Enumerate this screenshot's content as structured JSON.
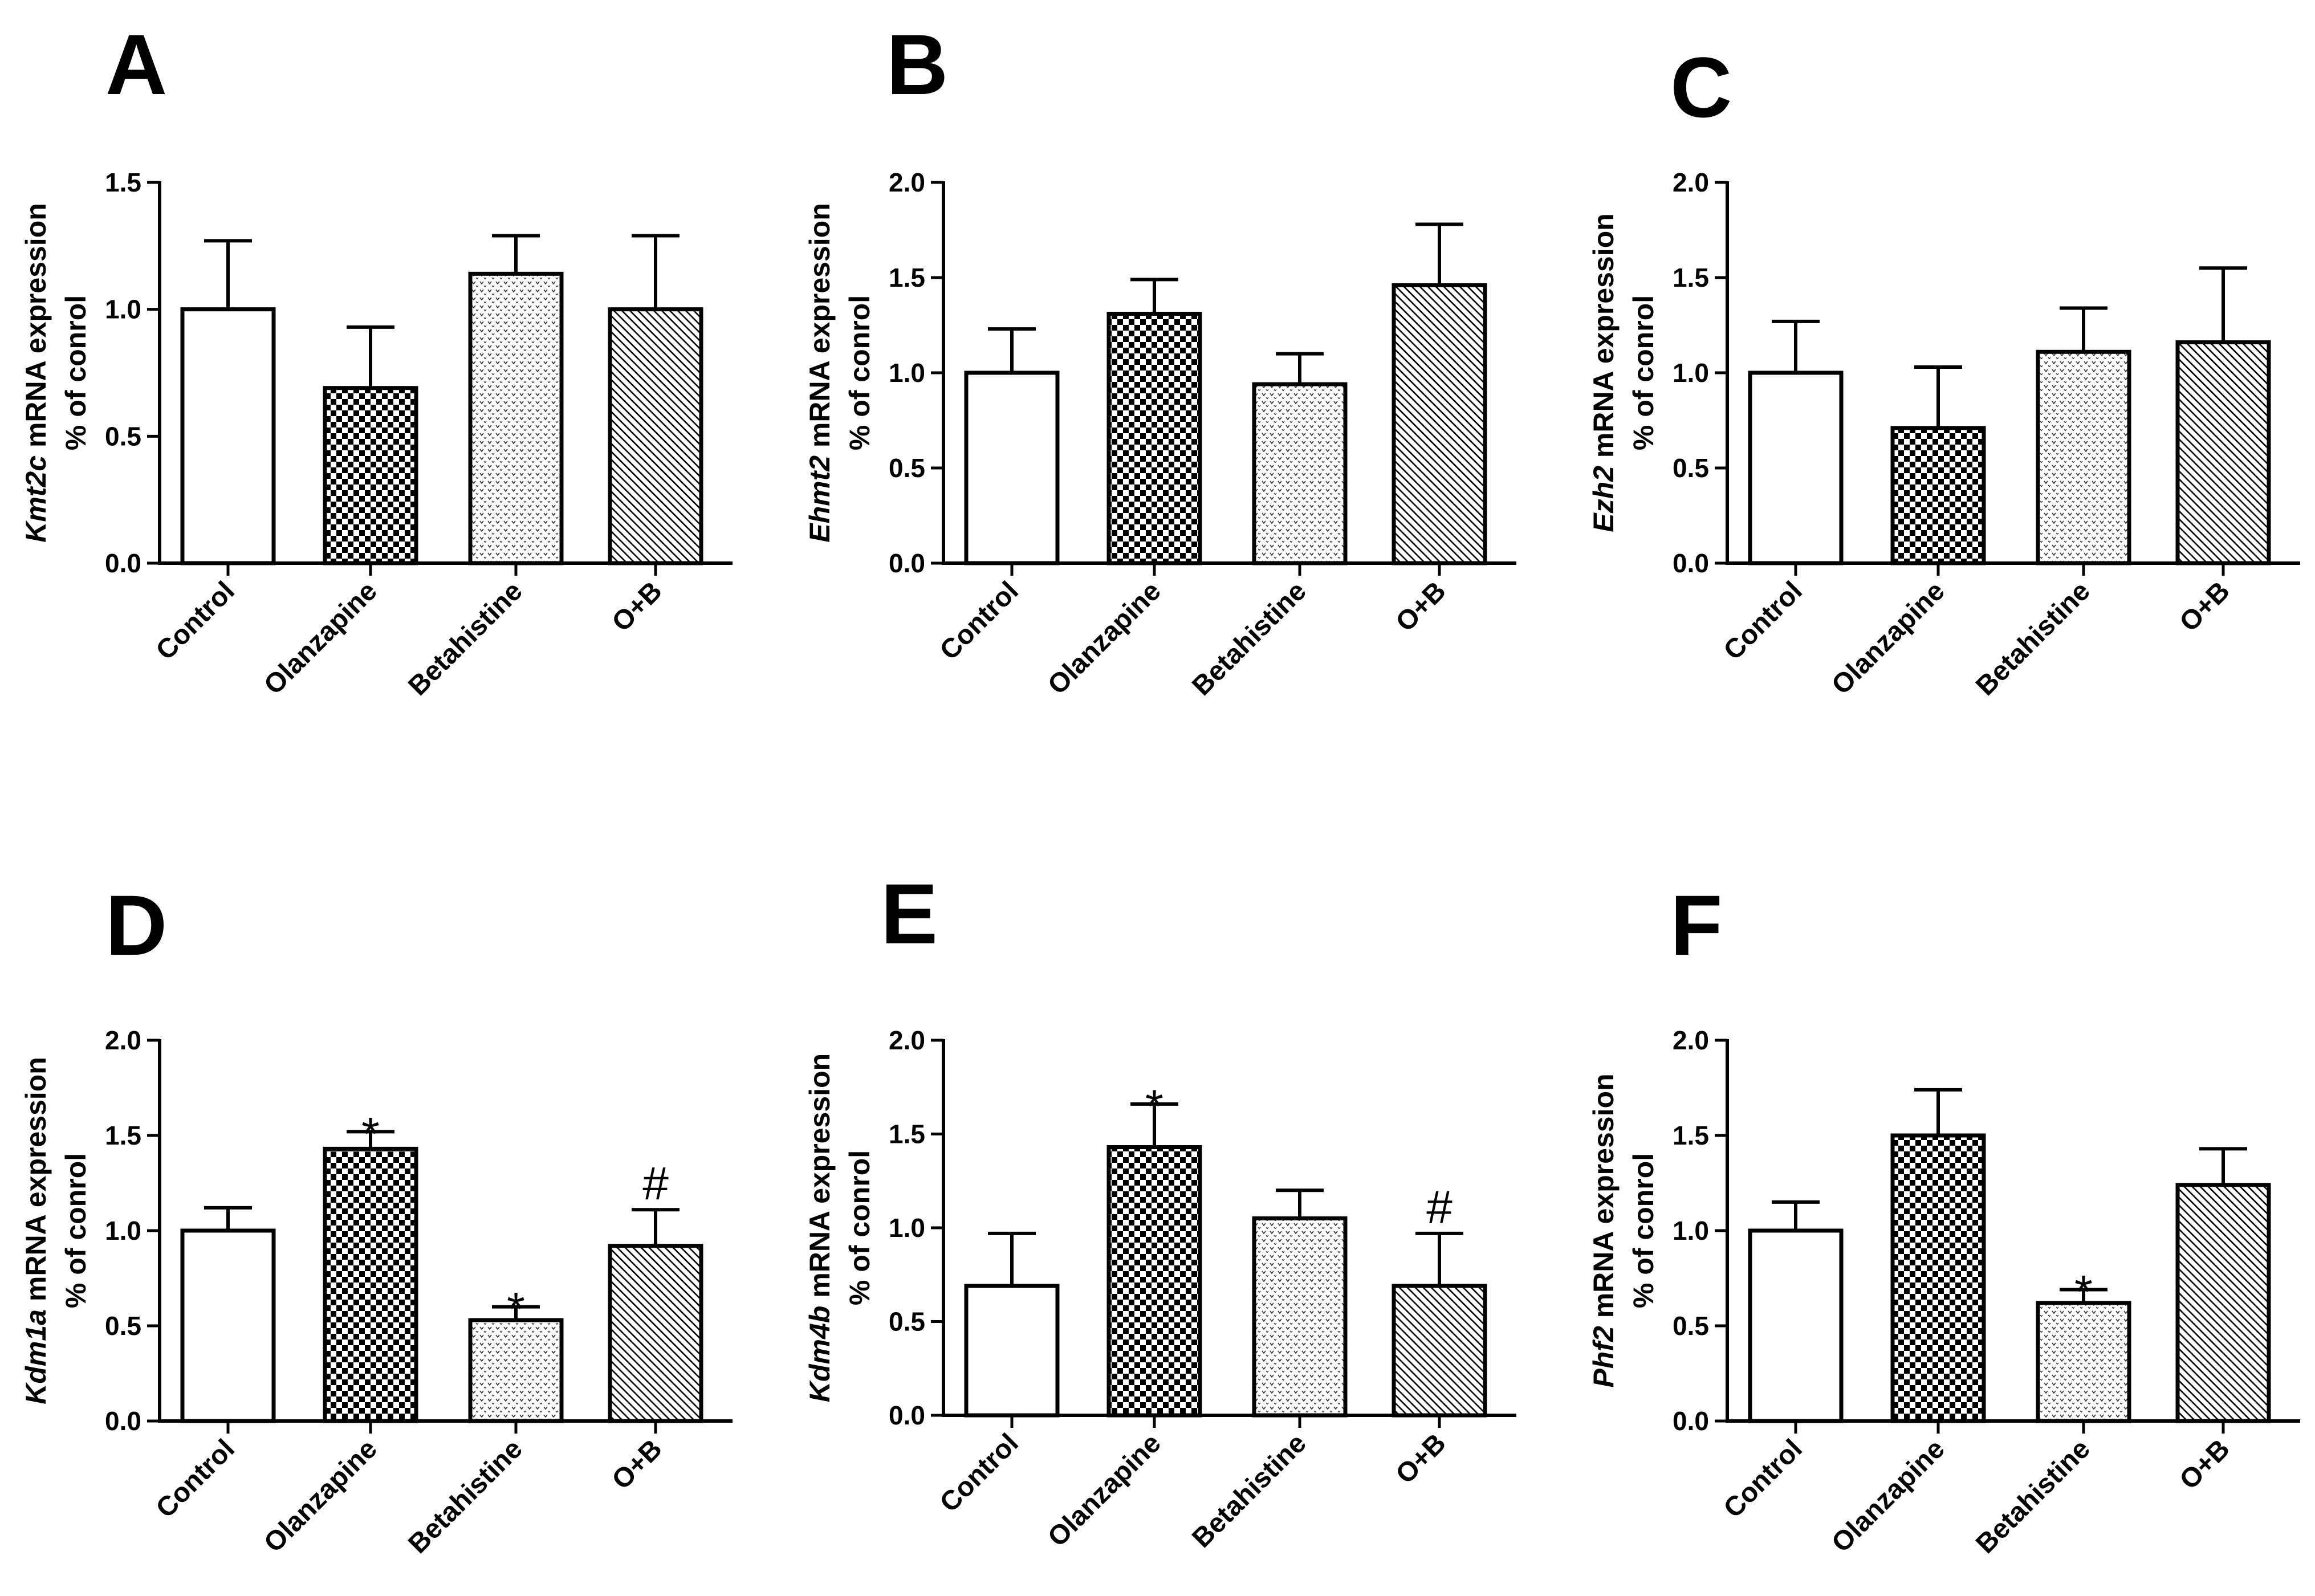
{
  "chart_data": [
    {
      "type": "bar",
      "panel": "A",
      "gene": "Kmt2c",
      "ylabel_suffix": " mRNA expression",
      "ylabel_line2": "% of conrol",
      "categories": [
        "Control",
        "Olanzapine",
        "Betahistine",
        "O+B"
      ],
      "values": [
        1.0,
        0.69,
        1.14,
        1.0
      ],
      "errors": [
        0.27,
        0.24,
        0.15,
        0.29
      ],
      "ylim": [
        0,
        1.5
      ],
      "yticks": [
        "0.0",
        "0.5",
        "1.0",
        "1.5"
      ],
      "annotations": [
        "",
        "",
        "",
        ""
      ]
    },
    {
      "type": "bar",
      "panel": "B",
      "gene": "Ehmt2",
      "ylabel_suffix": " mRNA expression",
      "ylabel_line2": "% of conrol",
      "categories": [
        "Control",
        "Olanzapine",
        "Betahistine",
        "O+B"
      ],
      "values": [
        1.0,
        1.31,
        0.94,
        1.46
      ],
      "errors": [
        0.23,
        0.18,
        0.16,
        0.32
      ],
      "ylim": [
        0,
        2.0
      ],
      "yticks": [
        "0.0",
        "0.5",
        "1.0",
        "1.5",
        "2.0"
      ],
      "annotations": [
        "",
        "",
        "",
        ""
      ]
    },
    {
      "type": "bar",
      "panel": "C",
      "gene": "Ezh2",
      "ylabel_suffix": " mRNA expression",
      "ylabel_line2": "% of conrol",
      "categories": [
        "Control",
        "Olanzapine",
        "Betahistine",
        "O+B"
      ],
      "values": [
        1.0,
        0.71,
        1.11,
        1.16
      ],
      "errors": [
        0.27,
        0.32,
        0.23,
        0.39
      ],
      "ylim": [
        0,
        2.0
      ],
      "yticks": [
        "0.0",
        "0.5",
        "1.0",
        "1.5",
        "2.0"
      ],
      "annotations": [
        "",
        "",
        "",
        ""
      ]
    },
    {
      "type": "bar",
      "panel": "D",
      "gene": "Kdm1a",
      "ylabel_suffix": " mRNA expression",
      "ylabel_line2": "% of conrol",
      "categories": [
        "Control",
        "Olanzapine",
        "Betahistine",
        "O+B"
      ],
      "values": [
        1.0,
        1.43,
        0.53,
        0.92
      ],
      "errors": [
        0.12,
        0.09,
        0.07,
        0.19
      ],
      "ylim": [
        0,
        2.0
      ],
      "yticks": [
        "0.0",
        "0.5",
        "1.0",
        "1.5",
        "2.0"
      ],
      "annotations": [
        "",
        "*",
        "*",
        "#"
      ]
    },
    {
      "type": "bar",
      "panel": "E",
      "gene": "Kdm4b",
      "ylabel_suffix": " mRNA expression",
      "ylabel_line2": "% of conrol",
      "categories": [
        "Control",
        "Olanzapine",
        "Betahistine",
        "O+B"
      ],
      "values": [
        0.69,
        1.43,
        1.05,
        0.69
      ],
      "errors": [
        0.28,
        0.23,
        0.15,
        0.28
      ],
      "ylim": [
        0,
        2.0
      ],
      "yticks": [
        "0.0",
        "0.5",
        "1.0",
        "1.5",
        "2.0"
      ],
      "annotations": [
        "",
        "*",
        "",
        "#"
      ]
    },
    {
      "type": "bar",
      "panel": "F",
      "gene": "Phf2",
      "ylabel_suffix": " mRNA expression",
      "ylabel_line2": "% of conrol",
      "categories": [
        "Control",
        "Olanzapine",
        "Betahistine",
        "O+B"
      ],
      "values": [
        1.0,
        1.5,
        0.62,
        1.24
      ],
      "errors": [
        0.15,
        0.24,
        0.07,
        0.19
      ],
      "ylim": [
        0,
        2.0
      ],
      "yticks": [
        "0.0",
        "0.5",
        "1.0",
        "1.5",
        "2.0"
      ],
      "annotations": [
        "",
        "",
        "*",
        ""
      ]
    }
  ]
}
